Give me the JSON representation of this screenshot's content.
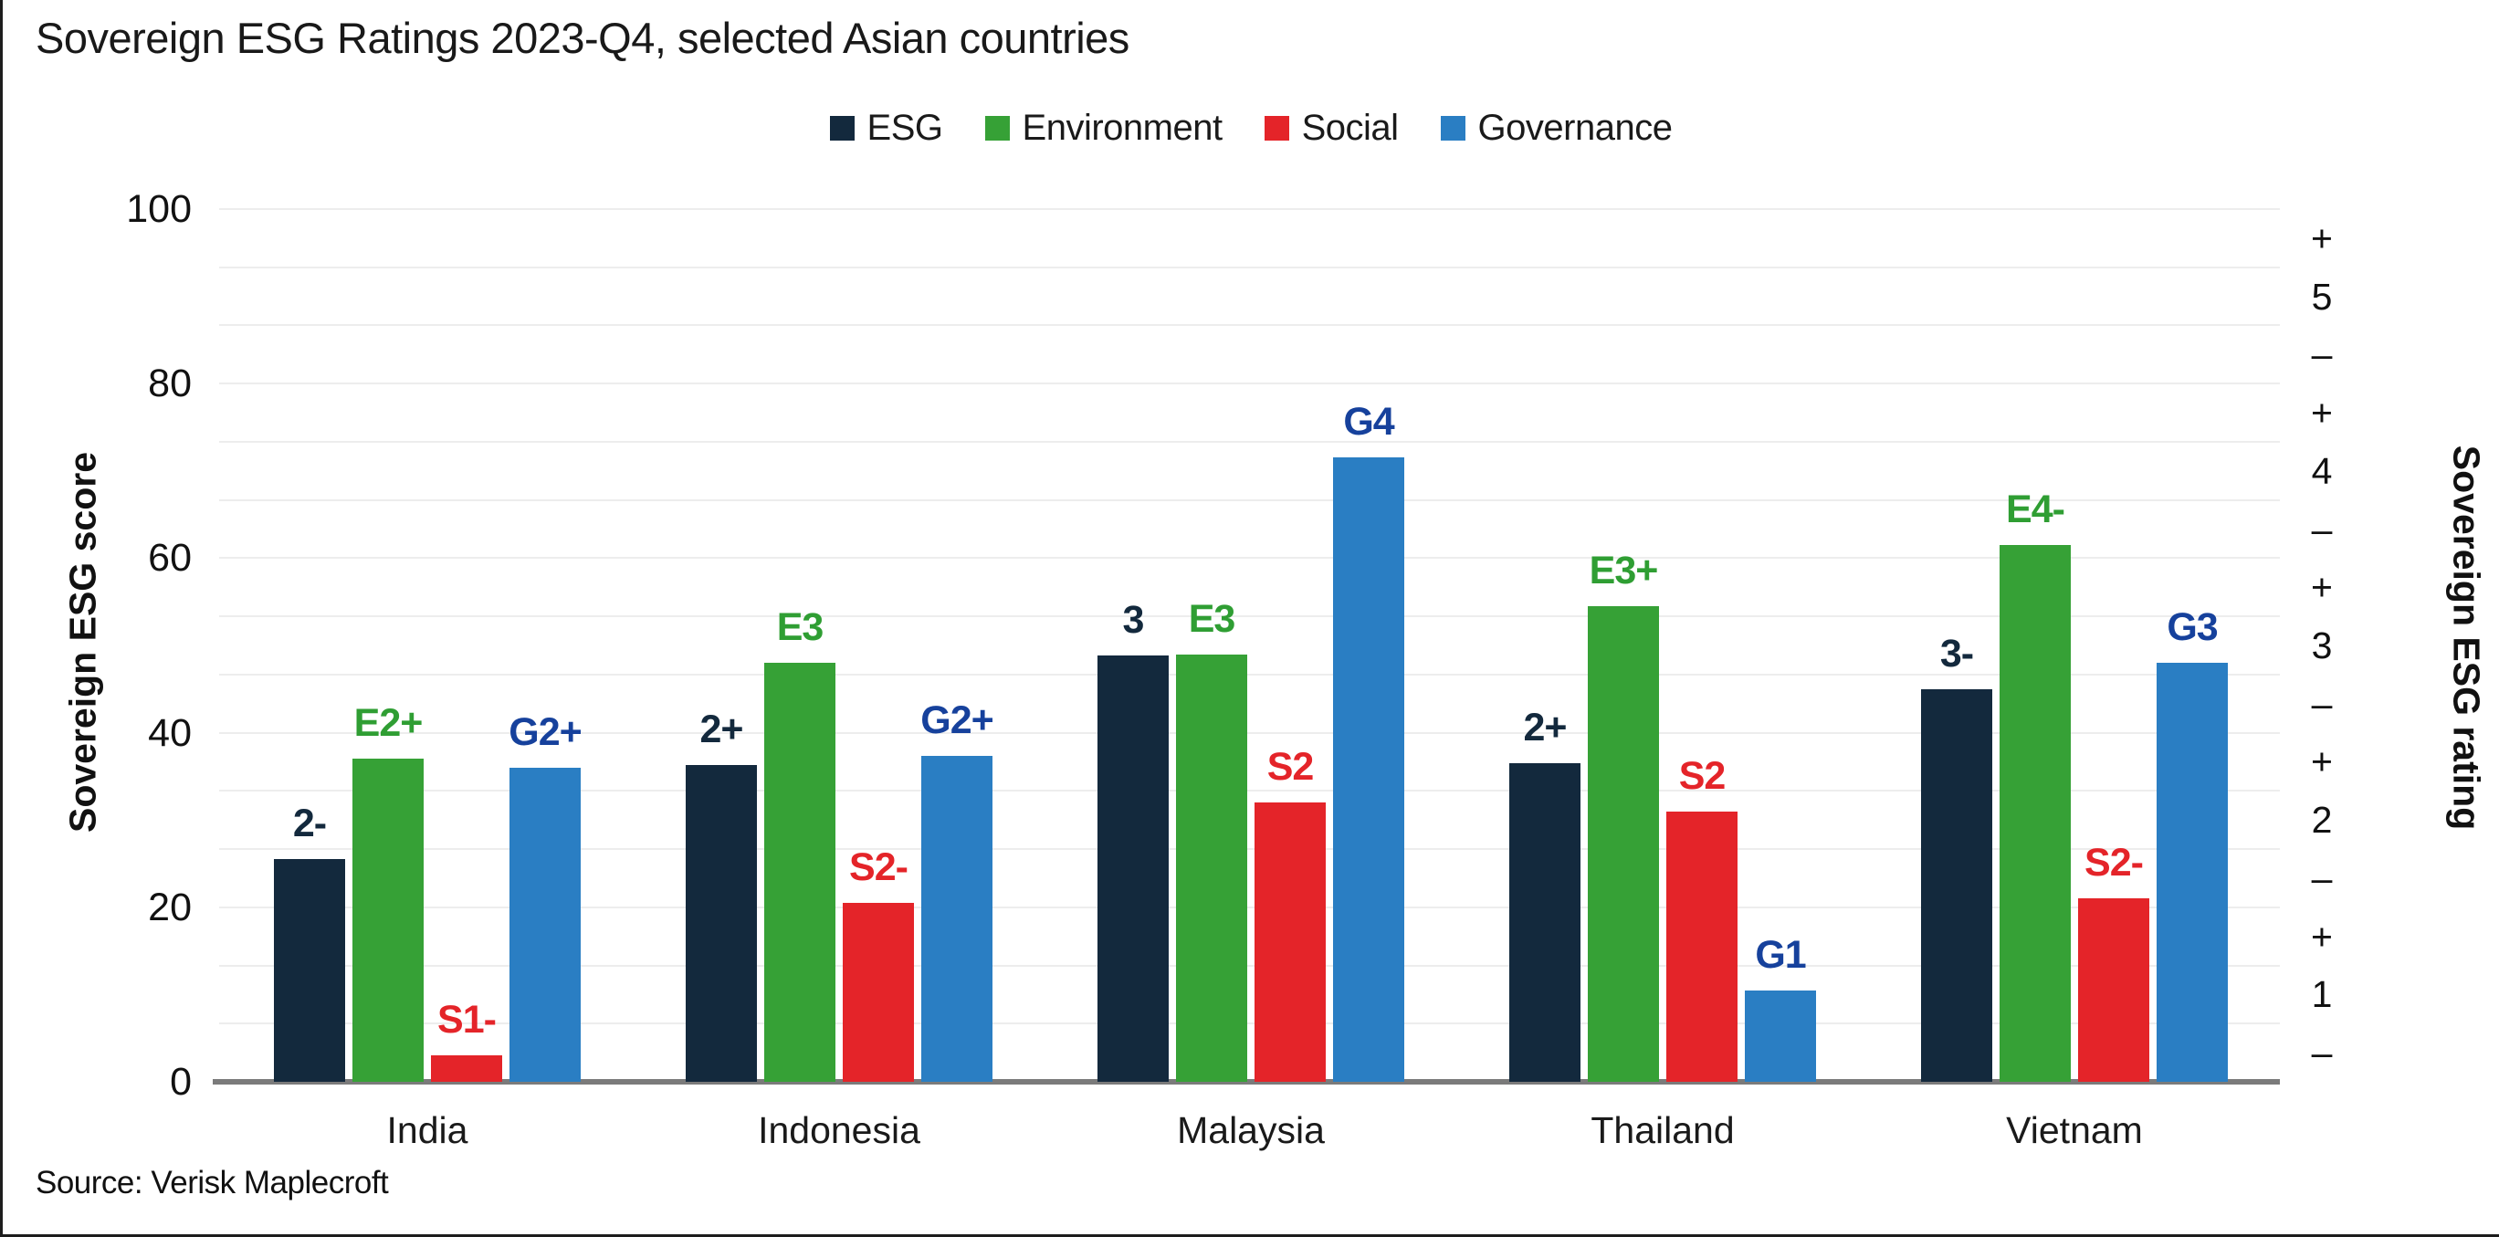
{
  "title": "Sovereign ESG Ratings 2023-Q4, selected Asian countries",
  "source": "Source: Verisk Maplecroft",
  "legend": [
    {
      "label": "ESG",
      "color": "#13293d"
    },
    {
      "label": "Environment",
      "color": "#36a136"
    },
    {
      "label": "Social",
      "color": "#e42429"
    },
    {
      "label": "Governance",
      "color": "#2a7ec3"
    }
  ],
  "left_axis": {
    "title": "Sovereign ESG score",
    "ticks": [
      0,
      20,
      40,
      60,
      80,
      100
    ],
    "min": 0,
    "max": 100
  },
  "right_axis": {
    "title": "Sovereign ESG rating",
    "labels_top_to_bottom": [
      "+",
      "5",
      "–",
      "+",
      "4",
      "–",
      "+",
      "3",
      "–",
      "+",
      "2",
      "–",
      "+",
      "1",
      "–"
    ]
  },
  "chart_data": {
    "type": "bar",
    "title": "Sovereign ESG Ratings 2023-Q4, selected Asian countries",
    "categories": [
      "India",
      "Indonesia",
      "Malaysia",
      "Thailand",
      "Vietnam"
    ],
    "xlabel": "",
    "ylabel": "Sovereign ESG score",
    "ylabel_right": "Sovereign ESG rating",
    "ylim": [
      0,
      100
    ],
    "gridlines": "horizontal, every 6.67 points (15 bands matching rating scale)",
    "legend_position": "top",
    "series": [
      {
        "name": "ESG",
        "color": "#13293d",
        "label_color": "#13293d",
        "values": [
          25.5,
          36.3,
          48.8,
          36.5,
          45
        ],
        "bar_labels": [
          "2-",
          "2+",
          "3",
          "2+",
          "3-"
        ]
      },
      {
        "name": "Environment",
        "color": "#36a136",
        "label_color": "#2f9e33",
        "values": [
          37,
          48,
          49,
          54.5,
          61.5
        ],
        "bar_labels": [
          "E2+",
          "E3",
          "E3",
          "E3+",
          "E4-"
        ]
      },
      {
        "name": "Social",
        "color": "#e42429",
        "label_color": "#e42429",
        "values": [
          3,
          20.5,
          32,
          31,
          21
        ],
        "bar_labels": [
          "S1-",
          "S2-",
          "S2",
          "S2",
          "S2-"
        ]
      },
      {
        "name": "Governance",
        "color": "#2a7ec3",
        "label_color": "#16419c",
        "values": [
          36,
          37.3,
          71.5,
          10.5,
          48
        ],
        "bar_labels": [
          "G2+",
          "G2+",
          "G4",
          "G1",
          "G3"
        ]
      }
    ]
  }
}
